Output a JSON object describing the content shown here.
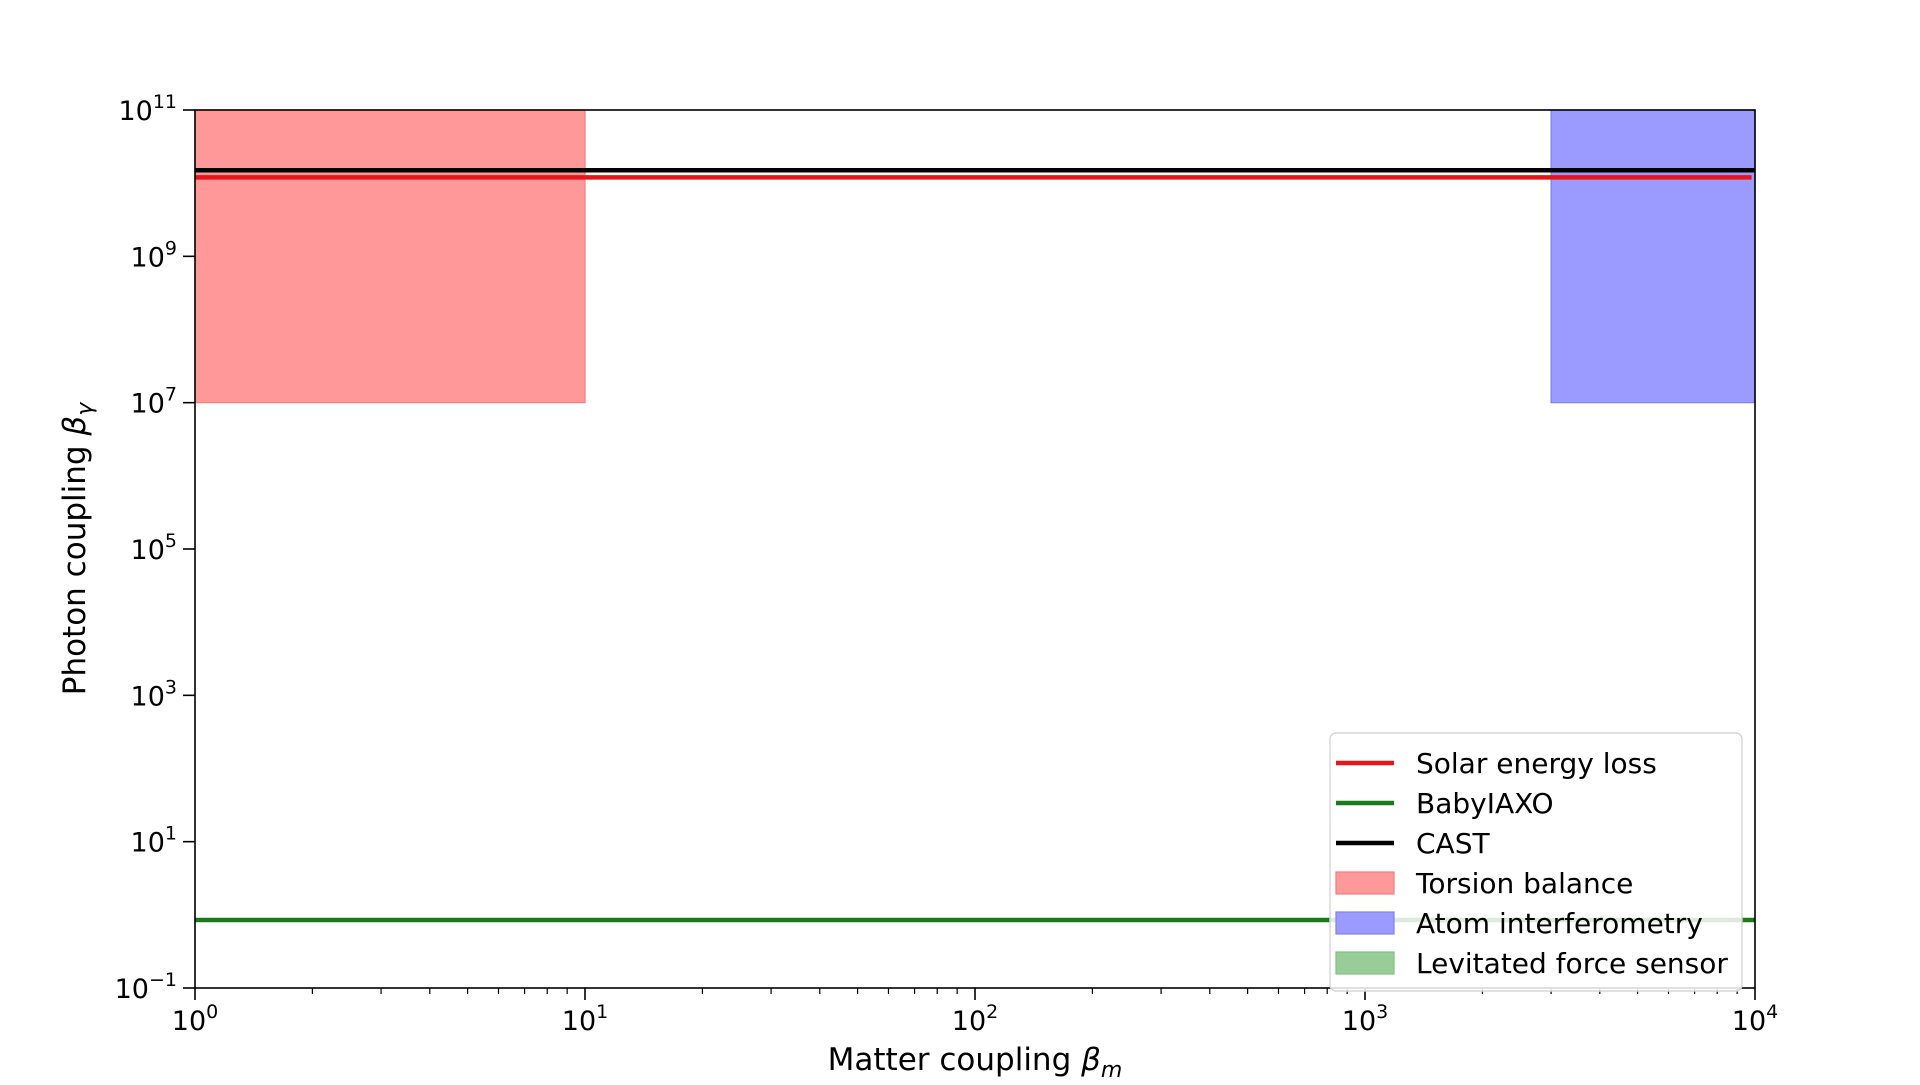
{
  "chart_data": {
    "type": "area",
    "xlabel_main": "Matter coupling ",
    "xlabel_sym": "β",
    "xlabel_sub": "m",
    "ylabel_main": "Photon coupling ",
    "ylabel_sym": "β",
    "ylabel_sub": "γ",
    "x_scale": "log",
    "y_scale": "log",
    "xlim": [
      1,
      10000
    ],
    "ylim": [
      0.1,
      100000000000
    ],
    "x_ticks": [
      {
        "value": 1,
        "base": "10",
        "exp": "0"
      },
      {
        "value": 10,
        "base": "10",
        "exp": "1"
      },
      {
        "value": 100,
        "base": "10",
        "exp": "2"
      },
      {
        "value": 1000,
        "base": "10",
        "exp": "3"
      },
      {
        "value": 10000,
        "base": "10",
        "exp": "4"
      }
    ],
    "y_ticks": [
      {
        "value": 0.1,
        "base": "10",
        "exp": "−1"
      },
      {
        "value": 10,
        "base": "10",
        "exp": "1"
      },
      {
        "value": 1000,
        "base": "10",
        "exp": "3"
      },
      {
        "value": 100000,
        "base": "10",
        "exp": "5"
      },
      {
        "value": 10000000,
        "base": "10",
        "exp": "7"
      },
      {
        "value": 1000000000,
        "base": "10",
        "exp": "9"
      },
      {
        "value": 100000000000,
        "base": "10",
        "exp": "11"
      }
    ],
    "grid": false,
    "legend_position": "bottom-right",
    "lines": [
      {
        "name": "Solar energy loss",
        "color": "#e8141c",
        "x": [
          1,
          9800
        ],
        "y": [
          12000000000,
          12000000000
        ]
      },
      {
        "name": "BabyIAXO",
        "color": "#1a7a1a",
        "x": [
          1,
          10000
        ],
        "y": [
          0.85,
          0.85
        ]
      },
      {
        "name": "CAST",
        "color": "#000000",
        "x": [
          1,
          10000
        ],
        "y": [
          15000000000,
          15000000000
        ]
      }
    ],
    "regions": [
      {
        "name": "Torsion balance",
        "fill": "#ff9999",
        "edge": "#f08080",
        "x": [
          1,
          10
        ],
        "y": [
          10000000,
          100000000000
        ]
      },
      {
        "name": "Atom interferometry",
        "fill": "#9b9bff",
        "edge": "#8080f0",
        "x": [
          3000,
          10000
        ],
        "y": [
          10000000,
          100000000000
        ]
      },
      {
        "name": "Levitated force sensor",
        "fill": "#98cc98",
        "edge": "#80c080",
        "x": [
          1,
          10000
        ],
        "y": [
          0.1,
          0.1
        ]
      }
    ],
    "legend": [
      {
        "label": "Solar energy loss",
        "kind": "line",
        "color": "#e8141c"
      },
      {
        "label": "BabyIAXO",
        "kind": "line",
        "color": "#1a7a1a"
      },
      {
        "label": "CAST",
        "kind": "line",
        "color": "#000000"
      },
      {
        "label": "Torsion balance",
        "kind": "patch",
        "color": "#ff9999",
        "edge": "#f08080"
      },
      {
        "label": "Atom interferometry",
        "kind": "patch",
        "color": "#9b9bff",
        "edge": "#8080f0"
      },
      {
        "label": "Levitated force sensor",
        "kind": "patch",
        "color": "#98cc98",
        "edge": "#80c080"
      }
    ]
  }
}
